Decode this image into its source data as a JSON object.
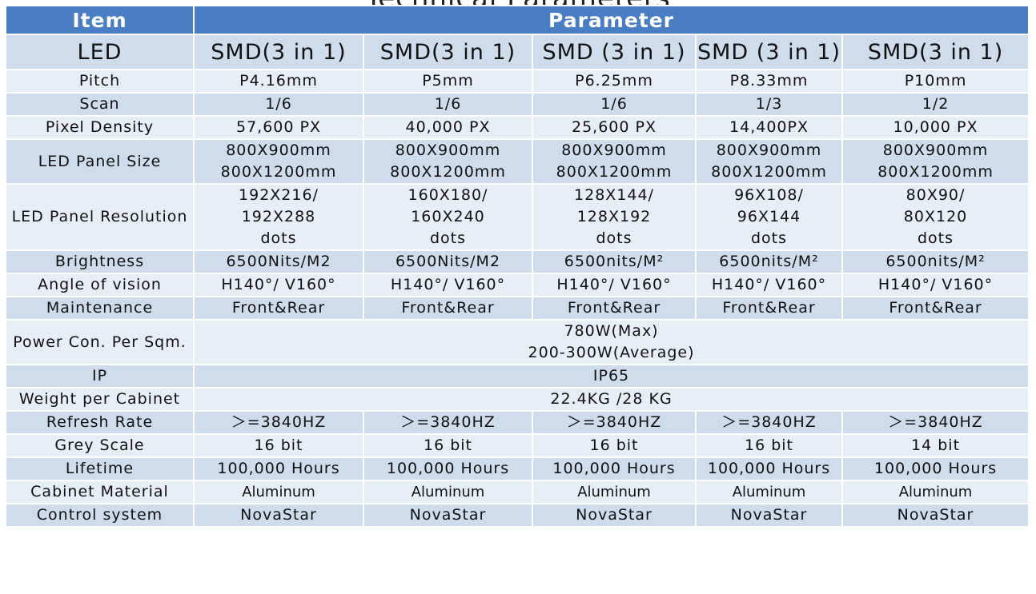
{
  "title_fragment": "Technical Parameters",
  "header": {
    "item": "Item",
    "parameter": "Parameter"
  },
  "led_row": {
    "label": "LED",
    "values": [
      "SMD(3 in 1)",
      "SMD(3 in 1)",
      "SMD (3 in 1)",
      "SMD (3 in 1)",
      "SMD(3 in 1)"
    ]
  },
  "rows": [
    {
      "label": "Pitch",
      "values": [
        [
          "P4.16mm"
        ],
        [
          "P5mm"
        ],
        [
          "P6.25mm"
        ],
        [
          "P8.33mm"
        ],
        [
          "P10mm"
        ]
      ]
    },
    {
      "label": "Scan",
      "values": [
        [
          "1/6"
        ],
        [
          "1/6"
        ],
        [
          "1/6"
        ],
        [
          "1/3"
        ],
        [
          "1/2"
        ]
      ]
    },
    {
      "label": "Pixel Density",
      "values": [
        [
          "57,600 PX"
        ],
        [
          "40,000 PX"
        ],
        [
          "25,600 PX"
        ],
        [
          "14,400PX"
        ],
        [
          "10,000 PX"
        ]
      ]
    },
    {
      "label": "LED Panel Size",
      "values": [
        [
          "800X900mm",
          "800X1200mm"
        ],
        [
          "800X900mm",
          "800X1200mm"
        ],
        [
          "800X900mm",
          "800X1200mm"
        ],
        [
          "800X900mm",
          "800X1200mm"
        ],
        [
          "800X900mm",
          "800X1200mm"
        ]
      ]
    },
    {
      "label": "LED Panel Resolution",
      "values": [
        [
          "192X216/",
          "192X288",
          "dots"
        ],
        [
          "160X180/",
          "160X240",
          "dots"
        ],
        [
          "128X144/",
          "128X192",
          "dots"
        ],
        [
          "96X108/",
          "96X144",
          "dots"
        ],
        [
          "80X90/",
          "80X120",
          "dots"
        ]
      ]
    },
    {
      "label": "Brightness",
      "values": [
        [
          "6500Nits/M2"
        ],
        [
          "6500Nits/M2"
        ],
        [
          "6500nits/M²"
        ],
        [
          "6500nits/M²"
        ],
        [
          "6500nits/M²"
        ]
      ]
    },
    {
      "label": "Angle of vision",
      "values": [
        [
          "H140°/ V160°"
        ],
        [
          "H140°/ V160°"
        ],
        [
          "H140°/ V160°"
        ],
        [
          "H140°/ V160°"
        ],
        [
          "H140°/ V160°"
        ]
      ]
    },
    {
      "label": "Maintenance",
      "values": [
        [
          "Front&Rear"
        ],
        [
          "Front&Rear"
        ],
        [
          "Front&Rear"
        ],
        [
          "Front&Rear"
        ],
        [
          "Front&Rear"
        ]
      ]
    },
    {
      "label": "Power Con. Per Sqm.",
      "merged": [
        "780W(Max)",
        "200-300W(Average)"
      ]
    },
    {
      "label": "IP",
      "merged": [
        "IP65"
      ]
    },
    {
      "label": "Weight per Cabinet",
      "merged": [
        "22.4KG /28 KG"
      ]
    },
    {
      "label": "Refresh Rate",
      "values": [
        [
          "＞=3840HZ"
        ],
        [
          "＞=3840HZ"
        ],
        [
          "＞=3840HZ"
        ],
        [
          "＞=3840HZ"
        ],
        [
          "＞=3840HZ"
        ]
      ]
    },
    {
      "label": "Grey Scale",
      "values": [
        [
          "16 bit"
        ],
        [
          "16 bit"
        ],
        [
          "16 bit"
        ],
        [
          "16 bit"
        ],
        [
          "14 bit"
        ]
      ]
    },
    {
      "label": "Lifetime",
      "values": [
        [
          "100,000 Hours"
        ],
        [
          "100,000 Hours"
        ],
        [
          "100,000 Hours"
        ],
        [
          "100,000 Hours"
        ],
        [
          "100,000 Hours"
        ]
      ]
    },
    {
      "label": "Cabinet Material",
      "small": true,
      "values": [
        [
          "Aluminum"
        ],
        [
          "Aluminum"
        ],
        [
          "Aluminum"
        ],
        [
          "Aluminum"
        ],
        [
          "Aluminum"
        ]
      ]
    },
    {
      "label": "Control system",
      "values": [
        [
          "NovaStar"
        ],
        [
          "NovaStar"
        ],
        [
          "NovaStar"
        ],
        [
          "NovaStar"
        ],
        [
          "NovaStar"
        ]
      ]
    }
  ]
}
